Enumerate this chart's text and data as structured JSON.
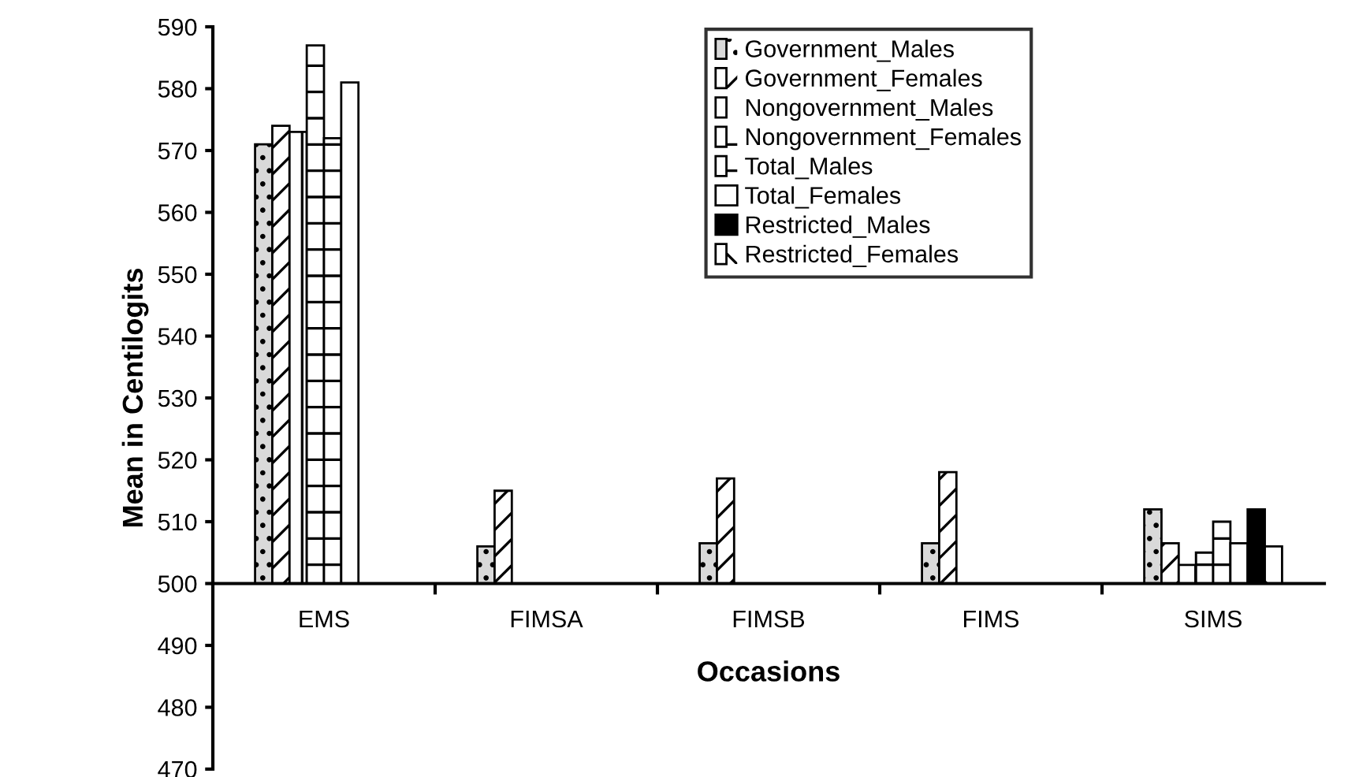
{
  "chart_data": {
    "type": "bar",
    "xlabel": "Occasions",
    "ylabel": "Mean in Centilogits",
    "categories": [
      "EMS",
      "FIMSA",
      "FIMSB",
      "FIMS",
      "SIMS"
    ],
    "series": [
      {
        "name": "Government_Males",
        "color": "#d9d9d9",
        "base": [
          500,
          500,
          500,
          500,
          500
        ],
        "values": [
          71,
          6,
          6.5,
          6.5,
          12
        ]
      },
      {
        "name": "Government_Females",
        "color": "#ffffff",
        "base": [
          500,
          500,
          500,
          500,
          500
        ],
        "values": [
          74,
          15,
          17,
          18,
          6.5
        ]
      },
      {
        "name": "Nongovernment_Males",
        "color": "#ffffff",
        "base": [
          500,
          null,
          null,
          null,
          500
        ],
        "values": [
          73,
          null,
          null,
          null,
          3
        ]
      },
      {
        "name": "Nongovernment_Females",
        "color": "#ffffff",
        "base": [
          500,
          null,
          null,
          null,
          500
        ],
        "values": [
          87,
          null,
          null,
          null,
          5
        ]
      },
      {
        "name": "Total_Males",
        "color": "#ffffff",
        "base": [
          500,
          null,
          null,
          null,
          500
        ],
        "values": [
          72,
          null,
          null,
          null,
          10
        ]
      },
      {
        "name": "Total_Females",
        "color": "#ffffff",
        "base": [
          500,
          null,
          null,
          null,
          500
        ],
        "values": [
          81,
          null,
          null,
          null,
          6.5
        ]
      },
      {
        "name": "Restricted_Males",
        "color": "#000000",
        "base": [
          null,
          null,
          null,
          null,
          500
        ],
        "values": [
          null,
          null,
          null,
          null,
          12
        ]
      },
      {
        "name": "Restricted_Females",
        "color": "#ffffff",
        "base": [
          null,
          null,
          null,
          null,
          500
        ],
        "values": [
          null,
          null,
          null,
          null,
          6
        ]
      }
    ],
    "ylim": [
      470,
      590
    ],
    "yticks": [
      470,
      480,
      490,
      500,
      510,
      520,
      530,
      540,
      550,
      560,
      570,
      580,
      590
    ],
    "grid": false,
    "legend": "top"
  }
}
